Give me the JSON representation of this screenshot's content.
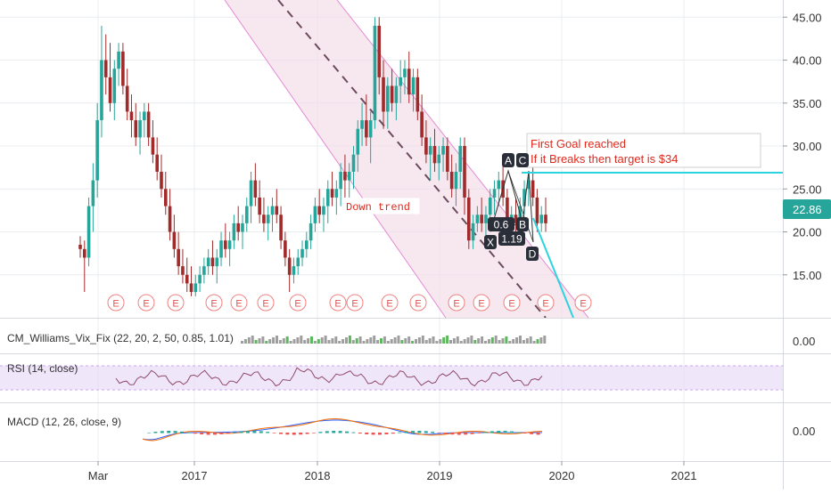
{
  "chart_data": [
    {
      "type": "candlestick",
      "panel": "price",
      "ylim": [
        10,
        47
      ],
      "y_ticks": [
        "45.00",
        "40.00",
        "35.00",
        "30.00",
        "25.00",
        "20.00",
        "15.00"
      ],
      "x_ticks": [
        "Mar",
        "2017",
        "2018",
        "2019",
        "2020",
        "2021"
      ],
      "last_price": "22.86",
      "grid": true,
      "ohlc_weekly_approx": [
        [
          18.5,
          19.5,
          17,
          18
        ],
        [
          18,
          19,
          13,
          17
        ],
        [
          17,
          24,
          16,
          23
        ],
        [
          23,
          28,
          20,
          26
        ],
        [
          26,
          35,
          24,
          33
        ],
        [
          33,
          44,
          31,
          40
        ],
        [
          40,
          43,
          36,
          38
        ],
        [
          38,
          42,
          34,
          35
        ],
        [
          35,
          40,
          33,
          39
        ],
        [
          39,
          42,
          37,
          41
        ],
        [
          41,
          42,
          36,
          37
        ],
        [
          37,
          39,
          33,
          34
        ],
        [
          34,
          36,
          31,
          33
        ],
        [
          33,
          35,
          30,
          31
        ],
        [
          31,
          34,
          29,
          33
        ],
        [
          33,
          35,
          31,
          34
        ],
        [
          34,
          35,
          30,
          31
        ],
        [
          31,
          33,
          28,
          29
        ],
        [
          29,
          31,
          26,
          27
        ],
        [
          27,
          29,
          24,
          25
        ],
        [
          25,
          27,
          22,
          23
        ],
        [
          23,
          25,
          19,
          20
        ],
        [
          20,
          22,
          17,
          18
        ],
        [
          18,
          20,
          15,
          16
        ],
        [
          16,
          18,
          14,
          15
        ],
        [
          15,
          17,
          13,
          14
        ],
        [
          14,
          16,
          12.5,
          13
        ],
        [
          13,
          15,
          12.5,
          14
        ],
        [
          14,
          16,
          13,
          15
        ],
        [
          15,
          17,
          14,
          16
        ],
        [
          16,
          18,
          15,
          17
        ],
        [
          17,
          19,
          15,
          16
        ],
        [
          16,
          18,
          14,
          17
        ],
        [
          17,
          20,
          16,
          19
        ],
        [
          19,
          21,
          17,
          18
        ],
        [
          18,
          20,
          16,
          19
        ],
        [
          19,
          22,
          18,
          21
        ],
        [
          21,
          23,
          19,
          20
        ],
        [
          20,
          22,
          18,
          21
        ],
        [
          21,
          24,
          20,
          23
        ],
        [
          23,
          27,
          21,
          26
        ],
        [
          26,
          28,
          23,
          24
        ],
        [
          24,
          26,
          21,
          22
        ],
        [
          22,
          24,
          20,
          21
        ],
        [
          21,
          23,
          19,
          22
        ],
        [
          22,
          24,
          20,
          23
        ],
        [
          23,
          25,
          21,
          22
        ],
        [
          22,
          23,
          18,
          19
        ],
        [
          19,
          20,
          16,
          17
        ],
        [
          17,
          18,
          13,
          15
        ],
        [
          15,
          17,
          14,
          16
        ],
        [
          16,
          18,
          15,
          17
        ],
        [
          17,
          19,
          16,
          18
        ],
        [
          18,
          20,
          17,
          19
        ],
        [
          19,
          22,
          18,
          21
        ],
        [
          21,
          24,
          20,
          23
        ],
        [
          23,
          25,
          21,
          22
        ],
        [
          22,
          24,
          20,
          23
        ],
        [
          23,
          26,
          21,
          25
        ],
        [
          25,
          27,
          23,
          24
        ],
        [
          24,
          26,
          22,
          25
        ],
        [
          25,
          28,
          23,
          27
        ],
        [
          27,
          29,
          24,
          26
        ],
        [
          26,
          28,
          24,
          27
        ],
        [
          27,
          30,
          25,
          29
        ],
        [
          29,
          33,
          27,
          32
        ],
        [
          32,
          35,
          30,
          33
        ],
        [
          33,
          36,
          30,
          31
        ],
        [
          31,
          34,
          28,
          33
        ],
        [
          33,
          45,
          32,
          44
        ],
        [
          44,
          45,
          36,
          38
        ],
        [
          38,
          40,
          32,
          34
        ],
        [
          34,
          38,
          32,
          37
        ],
        [
          37,
          39,
          34,
          35
        ],
        [
          35,
          38,
          33,
          37
        ],
        [
          37,
          40,
          35,
          38
        ],
        [
          38,
          40,
          36,
          39
        ],
        [
          39,
          41,
          35,
          36
        ],
        [
          36,
          39,
          34,
          38
        ],
        [
          38,
          39,
          33,
          34
        ],
        [
          34,
          36,
          30,
          31
        ],
        [
          31,
          33,
          28,
          29
        ],
        [
          29,
          31,
          26,
          30
        ],
        [
          30,
          32,
          27,
          28
        ],
        [
          28,
          30,
          26,
          29
        ],
        [
          29,
          31,
          27,
          30
        ],
        [
          30,
          31,
          26,
          27
        ],
        [
          27,
          29,
          24,
          25
        ],
        [
          25,
          28,
          23,
          27
        ],
        [
          27,
          31,
          25,
          30
        ],
        [
          30,
          31,
          22,
          24
        ],
        [
          24,
          25,
          18,
          19
        ],
        [
          19,
          22,
          18,
          21
        ],
        [
          21,
          23,
          20,
          22
        ],
        [
          22,
          24,
          20,
          21
        ],
        [
          21,
          23,
          19,
          22
        ],
        [
          22,
          25,
          21,
          24
        ],
        [
          24,
          26,
          22,
          25
        ],
        [
          25,
          27,
          23,
          26
        ],
        [
          26,
          28,
          23,
          24
        ],
        [
          24,
          25,
          20,
          21
        ],
        [
          21,
          23,
          19,
          22
        ],
        [
          22,
          24,
          20,
          21
        ],
        [
          21,
          24,
          20,
          23
        ],
        [
          23,
          26,
          22,
          25
        ],
        [
          25,
          27,
          23,
          26
        ],
        [
          26,
          28,
          23,
          24
        ],
        [
          24,
          25,
          20,
          21
        ],
        [
          21,
          23,
          20,
          22
        ],
        [
          22,
          24,
          20,
          21
        ]
      ],
      "earnings_markers": 19,
      "annotations": [
        {
          "text": "Down trend"
        },
        {
          "text": "First Goal reached",
          "text2": "If it Breaks then target is $34"
        }
      ],
      "harmonic_pattern_labels": [
        "X",
        "A",
        "B",
        "C",
        "D",
        "0.6",
        "1.19"
      ]
    },
    {
      "type": "histogram",
      "panel": "indicator",
      "label": "CM_Williams_Vix_Fix (22, 20, 2, 50, 0.85, 1.01)",
      "axis_label": "0.00"
    },
    {
      "type": "line",
      "panel": "indicator",
      "label": "RSI (14, close)"
    },
    {
      "type": "line",
      "panel": "indicator",
      "label": "MACD (12, 26, close, 9)",
      "axis_label": "0.00"
    }
  ],
  "colors": {
    "up": "#26a69a",
    "down": "#a12a2a",
    "channel_fill": "#f3dde8",
    "channel_edge": "#e48bd3",
    "target": "#2ad4e0",
    "annotation_text": "#e0291d",
    "rsi_band": "#eadcf7",
    "earnings": "#f08080",
    "grid": "#e8ecef"
  },
  "icons": {
    "earnings_marker": "E"
  }
}
